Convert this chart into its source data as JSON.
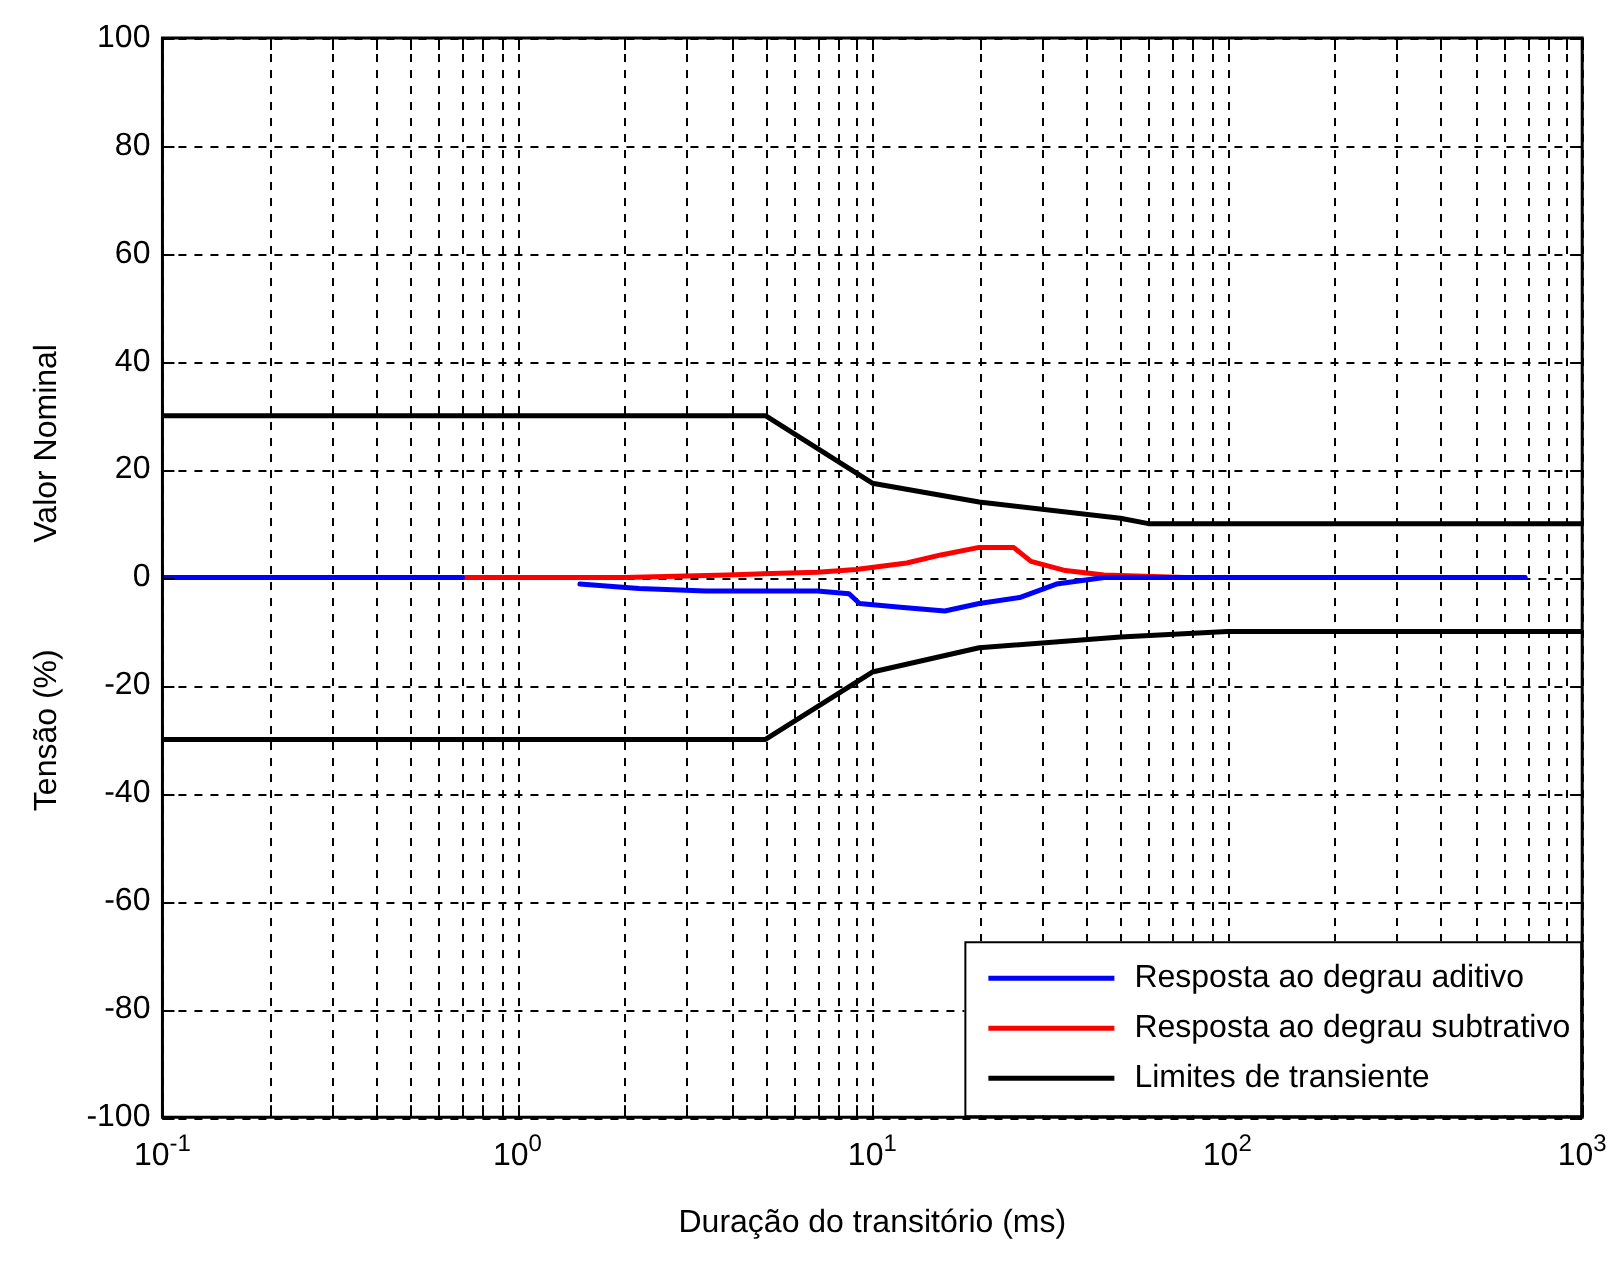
{
  "chart_data": {
    "type": "line",
    "xlabel": "Duração do transitório (ms)",
    "ylabel": "Tensão (%)            Valor Nominal",
    "log": "x",
    "xlim": [
      0.1,
      1000
    ],
    "ylim": [
      -100,
      100
    ],
    "xticks": [
      {
        "value": 0.1,
        "label": "10$^{-1}$"
      },
      {
        "value": 0.2,
        "label": null
      },
      {
        "value": 0.3,
        "label": null
      },
      {
        "value": 0.4,
        "label": null
      },
      {
        "value": 0.5,
        "label": null
      },
      {
        "value": 0.6,
        "label": null
      },
      {
        "value": 0.7,
        "label": null
      },
      {
        "value": 0.8,
        "label": null
      },
      {
        "value": 0.9,
        "label": null
      },
      {
        "value": 1,
        "label": "10$^{0}$"
      },
      {
        "value": 2,
        "label": null
      },
      {
        "value": 3,
        "label": null
      },
      {
        "value": 4,
        "label": null
      },
      {
        "value": 5,
        "label": null
      },
      {
        "value": 6,
        "label": null
      },
      {
        "value": 7,
        "label": null
      },
      {
        "value": 8,
        "label": null
      },
      {
        "value": 9,
        "label": null
      },
      {
        "value": 10,
        "label": "10$^{1}$"
      },
      {
        "value": 20,
        "label": null
      },
      {
        "value": 30,
        "label": null
      },
      {
        "value": 40,
        "label": null
      },
      {
        "value": 50,
        "label": null
      },
      {
        "value": 60,
        "label": null
      },
      {
        "value": 70,
        "label": null
      },
      {
        "value": 80,
        "label": null
      },
      {
        "value": 90,
        "label": null
      },
      {
        "value": 100,
        "label": "10$^{2}$"
      },
      {
        "value": 200,
        "label": null
      },
      {
        "value": 300,
        "label": null
      },
      {
        "value": 400,
        "label": null
      },
      {
        "value": 500,
        "label": null
      },
      {
        "value": 600,
        "label": null
      },
      {
        "value": 700,
        "label": null
      },
      {
        "value": 800,
        "label": null
      },
      {
        "value": 900,
        "label": null
      },
      {
        "value": 1000,
        "label": "10$^{3}$"
      }
    ],
    "yticks": [
      -100,
      -80,
      -60,
      -40,
      -20,
      0,
      20,
      40,
      60,
      80,
      100
    ],
    "grid": true,
    "legend": "bottom right",
    "line_style": "solid",
    "marker": "none",
    "series": [
      {
        "name": "Resposta ao degrau aditivo",
        "color": "#0000ff",
        "x": [
          0.1,
          0.7,
          1,
          1.5,
          2.2,
          3.4,
          7,
          8.6,
          9.2,
          12,
          16,
          20,
          26,
          33,
          45,
          690
        ],
        "values": [
          0,
          0,
          null,
          -1.2,
          -2,
          -2.5,
          -2.5,
          -3,
          -4.8,
          -5.5,
          -6.2,
          -4.8,
          -3.7,
          -1.2,
          0,
          0
        ]
      },
      {
        "name": "Resposta ao degrau subtrativo",
        "color": "#ff0000",
        "x": [
          0.1,
          2,
          3.9,
          7,
          9,
          12.5,
          15.6,
          20,
          25,
          28,
          35,
          45,
          76,
          690
        ],
        "values": [
          0,
          0,
          0.5,
          1,
          1.5,
          2.7,
          4.2,
          5.6,
          5.6,
          3,
          1.3,
          0.5,
          0,
          0
        ]
      },
      {
        "name": "Limites de transiente",
        "color": "#000000",
        "x": [
          0.1,
          5,
          10,
          20,
          50,
          60,
          1000
        ],
        "values": [
          30,
          30,
          17.5,
          14,
          11,
          10,
          10
        ]
      },
      {
        "color": "#000000",
        "x": [
          0.1,
          5,
          10,
          20,
          50,
          100,
          1000
        ],
        "values": [
          -30,
          -30,
          -17.5,
          -13,
          -11,
          -10,
          -10
        ]
      }
    ]
  }
}
